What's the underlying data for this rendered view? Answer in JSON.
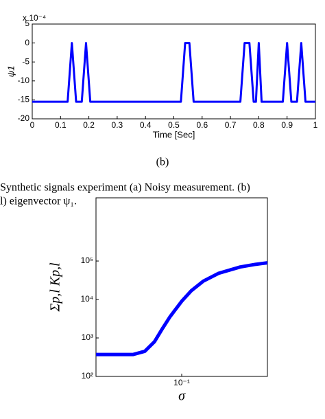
{
  "chart_data": [
    {
      "type": "line",
      "xlabel": "Time [Sec]",
      "ylabel": "ψ1",
      "y_multiplier": "x 10⁻⁴",
      "xlim": [
        0,
        1
      ],
      "xticks": [
        0,
        0.1,
        0.2,
        0.3,
        0.4,
        0.5,
        0.6,
        0.7,
        0.8,
        0.9,
        1
      ],
      "ylim": [
        -20,
        5
      ],
      "yticks": [
        -20,
        -15,
        -10,
        -5,
        0,
        5
      ],
      "series": [
        {
          "color": "#0000ff",
          "x": [
            0,
            0.125,
            0.14,
            0.155,
            0.175,
            0.19,
            0.205,
            0.525,
            0.54,
            0.555,
            0.57,
            0.735,
            0.75,
            0.767,
            0.782,
            0.79,
            0.8,
            0.81,
            0.885,
            0.9,
            0.915,
            0.935,
            0.95,
            0.965,
            1
          ],
          "values": [
            -15.5,
            -15.5,
            0,
            -15.5,
            -15.5,
            0,
            -15.5,
            -15.5,
            0,
            0,
            -15.5,
            -15.5,
            0,
            0,
            -15.5,
            -15.5,
            0,
            -15.5,
            -15.5,
            0,
            -15.5,
            -15.5,
            0,
            -15.5,
            -15.5
          ]
        }
      ]
    },
    {
      "type": "line",
      "xlabel": "σ",
      "ylabel": "Σp,l Kp,l",
      "xscale": "log",
      "yscale": "log",
      "xlim": [
        0.02,
        0.5
      ],
      "xticks": [
        {
          "value": 0.1,
          "label": "10⁻¹"
        }
      ],
      "ylim": [
        100,
        4400000
      ],
      "yticks": [
        {
          "value": 100,
          "label": "10²"
        },
        {
          "value": 1000,
          "label": "10³"
        },
        {
          "value": 10000,
          "label": "10⁴"
        },
        {
          "value": 100000,
          "label": "10⁵"
        }
      ],
      "series": [
        {
          "color": "#0000ff",
          "x": [
            0.02,
            0.03,
            0.04,
            0.05,
            0.06,
            0.07,
            0.08,
            0.1,
            0.12,
            0.15,
            0.2,
            0.3,
            0.4,
            0.5
          ],
          "values": [
            370,
            370,
            370,
            450,
            800,
            1800,
            3500,
            9000,
            17000,
            30000,
            48000,
            70000,
            82000,
            90000
          ]
        }
      ]
    }
  ],
  "panel_label": "(b)",
  "caption": [
    "Synthetic signals experiment (a) Noisy measurement. (b)",
    "l) eigenvector ψ₁."
  ]
}
